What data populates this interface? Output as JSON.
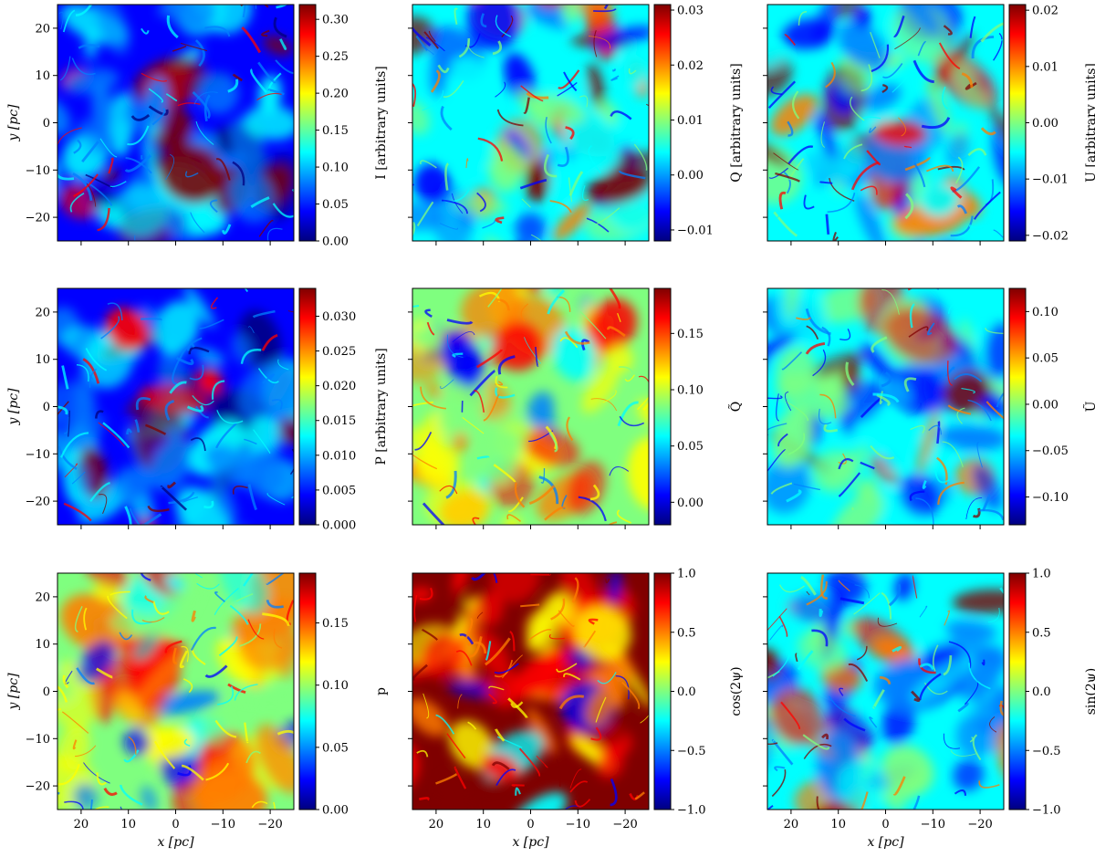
{
  "figure": {
    "rows": 3,
    "cols": 3,
    "colormap": "jet",
    "colormap_stops": [
      "#00007f",
      "#0000ff",
      "#007fff",
      "#00ffff",
      "#7fff7f",
      "#ffff00",
      "#ff7f00",
      "#ff0000",
      "#7f0000"
    ]
  },
  "chart_data": [
    {
      "type": "heatmap",
      "title": "",
      "ylabel": "y [pc]",
      "xlabel": "",
      "x_range": [
        25,
        -25
      ],
      "y_range": [
        -25,
        25
      ],
      "x_ticks": [
        20,
        10,
        0,
        -10,
        -20
      ],
      "x_tick_labels": [
        "",
        "",
        "",
        "",
        ""
      ],
      "y_ticks": [
        -20,
        -10,
        0,
        10,
        20
      ],
      "y_tick_labels": [
        "−20",
        "−10",
        "0",
        "10",
        "20"
      ],
      "colorbar_label": "I [arbitrary units]",
      "colorbar_range": [
        0.0,
        0.32
      ],
      "colorbar_ticks": [
        0.0,
        0.05,
        0.1,
        0.15,
        0.2,
        0.25,
        0.3
      ],
      "colorbar_tick_labels": [
        "0.00",
        "0.05",
        "0.10",
        "0.15",
        "0.20",
        "0.25",
        "0.30"
      ],
      "field": "lowblue"
    },
    {
      "type": "heatmap",
      "title": "",
      "ylabel": "",
      "xlabel": "",
      "x_range": [
        25,
        -25
      ],
      "y_range": [
        -25,
        25
      ],
      "x_ticks": [
        20,
        10,
        0,
        -10,
        -20
      ],
      "x_tick_labels": [
        "",
        "",
        "",
        "",
        ""
      ],
      "y_ticks": [
        -20,
        -10,
        0,
        10,
        20
      ],
      "y_tick_labels": [
        "",
        "",
        "",
        "",
        ""
      ],
      "colorbar_label": "Q [arbitrary units]",
      "colorbar_range": [
        -0.012,
        0.031
      ],
      "colorbar_ticks": [
        -0.01,
        0.0,
        0.01,
        0.02,
        0.03
      ],
      "colorbar_tick_labels": [
        "−0.01",
        "0.00",
        "0.01",
        "0.02",
        "0.03"
      ],
      "field": "midcyan"
    },
    {
      "type": "heatmap",
      "title": "",
      "ylabel": "",
      "xlabel": "",
      "x_range": [
        25,
        -25
      ],
      "y_range": [
        -25,
        25
      ],
      "x_ticks": [
        20,
        10,
        0,
        -10,
        -20
      ],
      "x_tick_labels": [
        "",
        "",
        "",
        "",
        ""
      ],
      "y_ticks": [
        -20,
        -10,
        0,
        10,
        20
      ],
      "y_tick_labels": [
        "",
        "",
        "",
        "",
        ""
      ],
      "colorbar_label": "U [arbitrary units]",
      "colorbar_range": [
        -0.021,
        0.021
      ],
      "colorbar_ticks": [
        -0.02,
        -0.01,
        0.0,
        0.01,
        0.02
      ],
      "colorbar_tick_labels": [
        "−0.02",
        "−0.01",
        "0.00",
        "0.01",
        "0.02"
      ],
      "field": "midcyan"
    },
    {
      "type": "heatmap",
      "title": "",
      "ylabel": "y [pc]",
      "xlabel": "",
      "x_range": [
        25,
        -25
      ],
      "y_range": [
        -25,
        25
      ],
      "x_ticks": [
        20,
        10,
        0,
        -10,
        -20
      ],
      "x_tick_labels": [
        "",
        "",
        "",
        "",
        ""
      ],
      "y_ticks": [
        -20,
        -10,
        0,
        10,
        20
      ],
      "y_tick_labels": [
        "−20",
        "−10",
        "0",
        "10",
        "20"
      ],
      "colorbar_label": "P [arbitrary units]",
      "colorbar_range": [
        0.0,
        0.034
      ],
      "colorbar_ticks": [
        0.0,
        0.005,
        0.01,
        0.015,
        0.02,
        0.025,
        0.03
      ],
      "colorbar_tick_labels": [
        "0.000",
        "0.005",
        "0.010",
        "0.015",
        "0.020",
        "0.025",
        "0.030"
      ],
      "field": "lowblue"
    },
    {
      "type": "heatmap",
      "title": "",
      "ylabel": "",
      "xlabel": "",
      "x_range": [
        25,
        -25
      ],
      "y_range": [
        -25,
        25
      ],
      "x_ticks": [
        20,
        10,
        0,
        -10,
        -20
      ],
      "x_tick_labels": [
        "",
        "",
        "",
        "",
        ""
      ],
      "y_ticks": [
        -20,
        -10,
        0,
        10,
        20
      ],
      "y_tick_labels": [
        "",
        "",
        "",
        "",
        ""
      ],
      "colorbar_label": "Q̃",
      "colorbar_range": [
        -0.02,
        0.19
      ],
      "colorbar_ticks": [
        0.0,
        0.05,
        0.1,
        0.15
      ],
      "colorbar_tick_labels": [
        "0.00",
        "0.05",
        "0.10",
        "0.15"
      ],
      "field": "mixed"
    },
    {
      "type": "heatmap",
      "title": "",
      "ylabel": "",
      "xlabel": "",
      "x_range": [
        25,
        -25
      ],
      "y_range": [
        -25,
        25
      ],
      "x_ticks": [
        20,
        10,
        0,
        -10,
        -20
      ],
      "x_tick_labels": [
        "",
        "",
        "",
        "",
        ""
      ],
      "y_ticks": [
        -20,
        -10,
        0,
        10,
        20
      ],
      "y_tick_labels": [
        "",
        "",
        "",
        "",
        ""
      ],
      "colorbar_label": "Ũ",
      "colorbar_range": [
        -0.13,
        0.125
      ],
      "colorbar_ticks": [
        -0.1,
        -0.05,
        0.0,
        0.05,
        0.1
      ],
      "colorbar_tick_labels": [
        "−0.10",
        "−0.05",
        "0.00",
        "0.05",
        "0.10"
      ],
      "field": "midcyan"
    },
    {
      "type": "heatmap",
      "title": "",
      "ylabel": "y [pc]",
      "xlabel": "x [pc]",
      "x_range": [
        25,
        -25
      ],
      "y_range": [
        -25,
        25
      ],
      "x_ticks": [
        20,
        10,
        0,
        -10,
        -20
      ],
      "x_tick_labels": [
        "20",
        "10",
        "0",
        "−10",
        "−20"
      ],
      "y_ticks": [
        -20,
        -10,
        0,
        10,
        20
      ],
      "y_tick_labels": [
        "−20",
        "−10",
        "0",
        "10",
        "20"
      ],
      "colorbar_label": "p",
      "colorbar_range": [
        0.0,
        0.19
      ],
      "colorbar_ticks": [
        0.0,
        0.05,
        0.1,
        0.15
      ],
      "colorbar_tick_labels": [
        "0.00",
        "0.05",
        "0.10",
        "0.15"
      ],
      "field": "mixed"
    },
    {
      "type": "heatmap",
      "title": "",
      "ylabel": "",
      "xlabel": "x [pc]",
      "x_range": [
        25,
        -25
      ],
      "y_range": [
        -25,
        25
      ],
      "x_ticks": [
        20,
        10,
        0,
        -10,
        -20
      ],
      "x_tick_labels": [
        "20",
        "10",
        "0",
        "−10",
        "−20"
      ],
      "y_ticks": [
        -20,
        -10,
        0,
        10,
        20
      ],
      "y_tick_labels": [
        "",
        "",
        "",
        "",
        ""
      ],
      "colorbar_label": "cos(2ψ)",
      "colorbar_range": [
        -1.0,
        1.0
      ],
      "colorbar_ticks": [
        -1.0,
        -0.5,
        0.0,
        0.5,
        1.0
      ],
      "colorbar_tick_labels": [
        "−1.0",
        "−0.5",
        "0.0",
        "0.5",
        "1.0"
      ],
      "field": "high"
    },
    {
      "type": "heatmap",
      "title": "",
      "ylabel": "",
      "xlabel": "x [pc]",
      "x_range": [
        25,
        -25
      ],
      "y_range": [
        -25,
        25
      ],
      "x_ticks": [
        20,
        10,
        0,
        -10,
        -20
      ],
      "x_tick_labels": [
        "20",
        "10",
        "0",
        "−10",
        "−20"
      ],
      "y_ticks": [
        -20,
        -10,
        0,
        10,
        20
      ],
      "y_tick_labels": [
        "",
        "",
        "",
        "",
        ""
      ],
      "colorbar_label": "sin(2ψ)",
      "colorbar_range": [
        -1.0,
        1.0
      ],
      "colorbar_ticks": [
        -1.0,
        -0.5,
        0.0,
        0.5,
        1.0
      ],
      "colorbar_tick_labels": [
        "−1.0",
        "−0.5",
        "0.0",
        "0.5",
        "1.0"
      ],
      "field": "midcyan"
    }
  ]
}
